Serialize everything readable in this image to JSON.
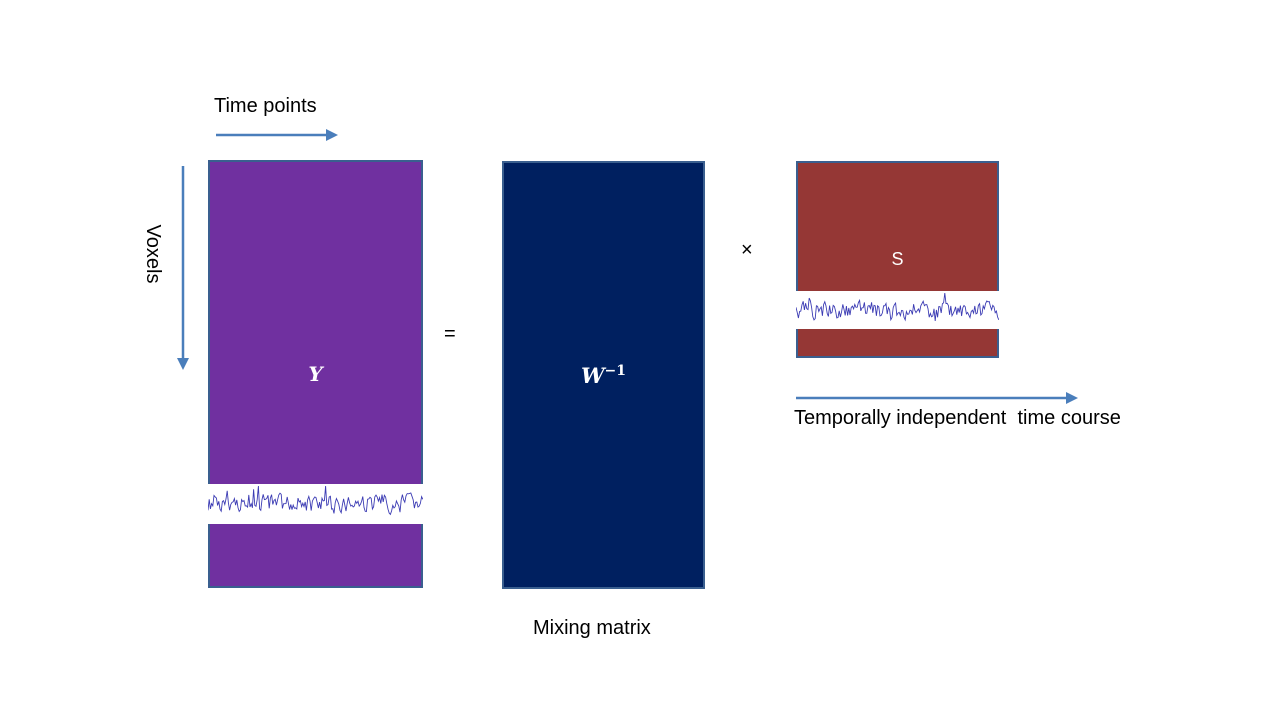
{
  "labels": {
    "time_points": "Time points",
    "voxels": "Voxels",
    "mixing_matrix": "Mixing matrix",
    "temporal": "Temporally independent  time course"
  },
  "symbols": {
    "y": "Y",
    "w_base": "W",
    "w_exponent": "−1",
    "s": "S",
    "equals": "=",
    "times": "×"
  },
  "colors": {
    "y_matrix": "#7030a0",
    "mixing_matrix": "#002060",
    "s_matrix": "#953735",
    "border": "#3a5f8f",
    "arrow": "#4a7ebb",
    "signal": "#3c3cb4"
  }
}
